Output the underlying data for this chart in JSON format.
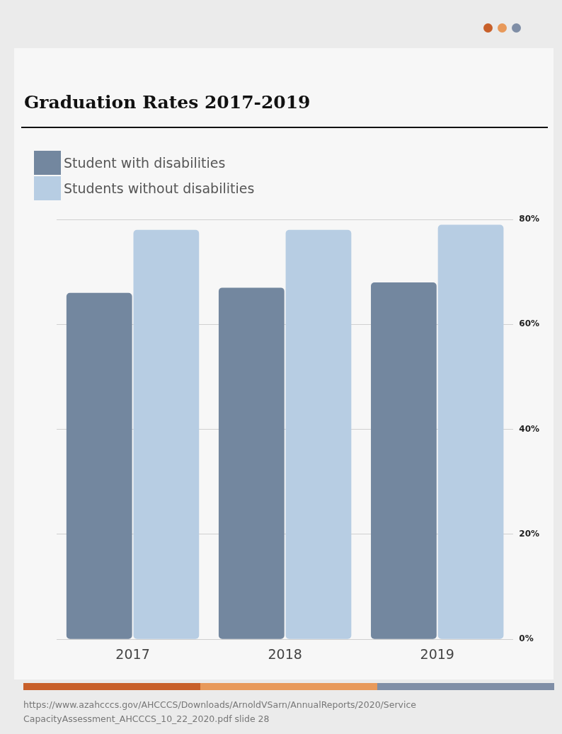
{
  "chart_data": {
    "type": "bar",
    "title": "Graduation Rates 2017-2019",
    "categories": [
      "2017",
      "2018",
      "2019"
    ],
    "series": [
      {
        "name": "Student with disabilities",
        "color": "#73879f",
        "values": [
          66,
          67,
          68
        ]
      },
      {
        "name": "Students without disabilities",
        "color": "#b7cde3",
        "values": [
          78,
          78,
          79
        ]
      }
    ],
    "ylim": [
      0,
      80
    ],
    "yticks": [
      {
        "value": 0,
        "label": "0%"
      },
      {
        "value": 20,
        "label": "20%"
      },
      {
        "value": 40,
        "label": "40%"
      },
      {
        "value": 60,
        "label": "60%"
      },
      {
        "value": 80,
        "label": "80%"
      }
    ],
    "grid": "y",
    "legend": "top left",
    "annotations": [
      "https://www.azahcccs.gov/AHCCCS/Downloads/ArnoldVSarn/AnnualReports/2020/ServiceCapacityAssessment_AHCCCS_10_22_2020.pdf slide 28"
    ]
  }
}
